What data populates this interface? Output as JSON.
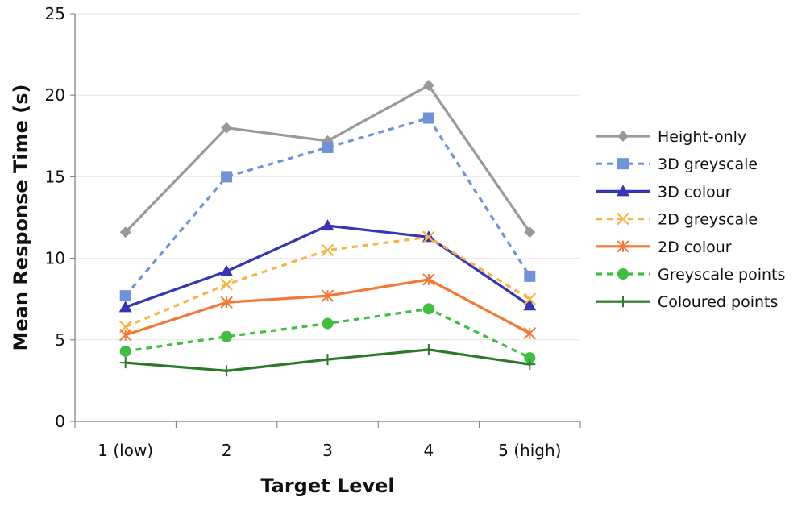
{
  "chart_data": {
    "type": "line",
    "title": "",
    "xlabel": "Target Level",
    "ylabel": "Mean Response Time (s)",
    "categories": [
      "1 (low)",
      "2",
      "3",
      "4",
      "5 (high)"
    ],
    "ylim": [
      0,
      25
    ],
    "yticks": [
      0,
      5,
      10,
      15,
      20,
      25
    ],
    "grid": true,
    "legend_position": "right",
    "series": [
      {
        "name": "Height-only",
        "color": "#999999",
        "dash": "solid",
        "marker": "diamond",
        "values": [
          11.6,
          18.0,
          17.2,
          20.6,
          11.6
        ]
      },
      {
        "name": "3D greyscale",
        "color": "#6f93d8",
        "dash": "dashed",
        "marker": "square",
        "values": [
          7.7,
          15.0,
          16.8,
          18.6,
          8.9
        ]
      },
      {
        "name": "3D colour",
        "color": "#3535b5",
        "dash": "solid",
        "marker": "triangle",
        "values": [
          7.0,
          9.2,
          12.0,
          11.3,
          7.1
        ]
      },
      {
        "name": "2D greyscale",
        "color": "#f6b545",
        "dash": "dashed",
        "marker": "x",
        "values": [
          5.8,
          8.4,
          10.5,
          11.3,
          7.5
        ]
      },
      {
        "name": "2D colour",
        "color": "#f47736",
        "dash": "solid",
        "marker": "asterisk",
        "values": [
          5.3,
          7.3,
          7.7,
          8.7,
          5.4
        ]
      },
      {
        "name": "Greyscale points",
        "color": "#3fbf3f",
        "dash": "dashed",
        "marker": "circle",
        "values": [
          4.3,
          5.2,
          6.0,
          6.9,
          3.9
        ]
      },
      {
        "name": "Coloured points",
        "color": "#2a7a2a",
        "dash": "solid",
        "marker": "plus",
        "values": [
          3.6,
          3.1,
          3.8,
          4.4,
          3.5
        ]
      }
    ]
  }
}
